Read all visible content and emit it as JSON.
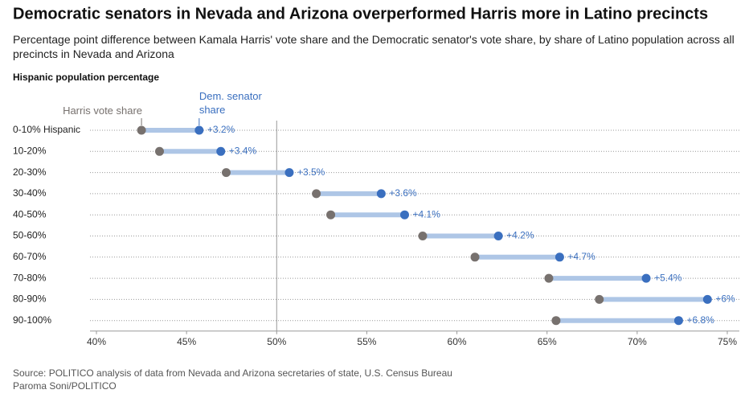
{
  "chart_data": {
    "type": "dumbbell",
    "title": "Democratic senators in Nevada and Arizona overperformed Harris more in Latino precincts",
    "subtitle": "Percentage point difference between Kamala Harris' vote share and the Democratic senator's vote share, by share of Latino population across all precincts in Nevada and Arizona",
    "y_axis_label": "Hispanic population percentage",
    "categories": [
      "0-10% Hispanic",
      "10-20%",
      "20-30%",
      "30-40%",
      "40-50%",
      "50-60%",
      "60-70%",
      "70-80%",
      "80-90%",
      "90-100%"
    ],
    "series": [
      {
        "name": "Harris vote share",
        "color": "#77716e",
        "values": [
          42.5,
          43.5,
          47.2,
          52.2,
          53.0,
          58.1,
          61.0,
          65.1,
          67.9,
          65.5
        ]
      },
      {
        "name": "Dem. senator share",
        "color": "#3a6fbf",
        "values": [
          45.7,
          46.9,
          50.7,
          55.8,
          57.1,
          62.3,
          65.7,
          70.5,
          73.9,
          72.3
        ]
      }
    ],
    "differences": {
      "color": "#aec6e6",
      "values": [
        3.2,
        3.4,
        3.5,
        3.6,
        4.1,
        4.2,
        4.7,
        5.4,
        6,
        6.8
      ],
      "value_labels": [
        "+3.2%",
        "+3.4%",
        "+3.5%",
        "+3.6%",
        "+4.1%",
        "+4.2%",
        "+4.7%",
        "+5.4%",
        "+6%",
        "+6.8%"
      ]
    },
    "xlim": [
      40,
      75
    ],
    "xticks": [
      {
        "value": 40,
        "label": "40%"
      },
      {
        "value": 45,
        "label": "45%"
      },
      {
        "value": 50,
        "label": "50%"
      },
      {
        "value": 55,
        "label": "55%"
      },
      {
        "value": 60,
        "label": "60%"
      },
      {
        "value": 65,
        "label": "65%"
      },
      {
        "value": 70,
        "label": "70%"
      },
      {
        "value": 75,
        "label": "75%"
      }
    ],
    "reference_line": 50,
    "grid": true,
    "source": "Source: POLITICO analysis of data from Nevada and Arizona secretaries of state, U.S. Census Bureau",
    "credit": "Paroma Soni/POLITICO"
  }
}
